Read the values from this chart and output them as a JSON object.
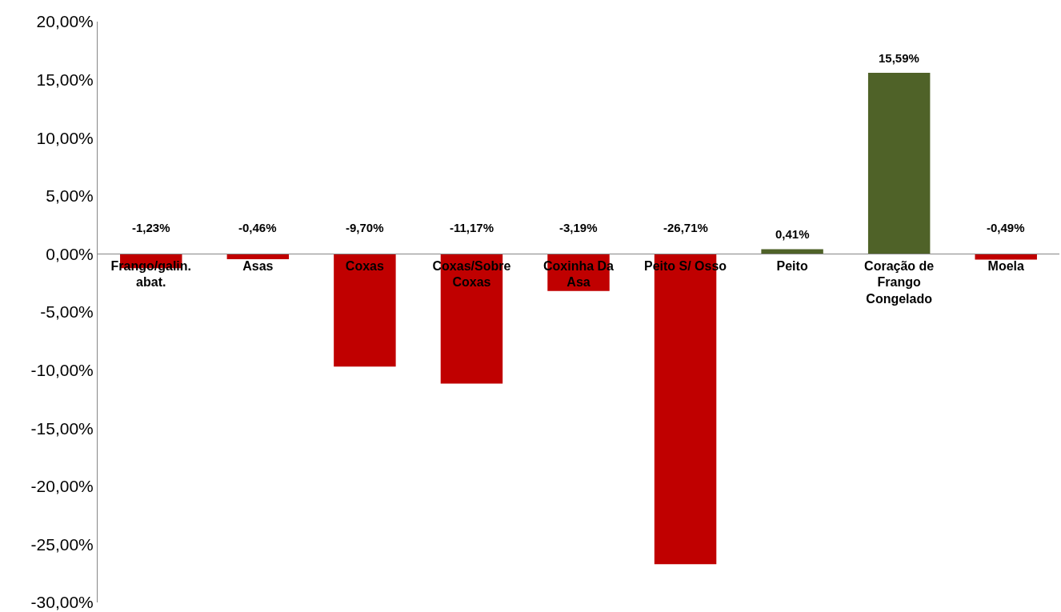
{
  "chart_data": {
    "type": "bar",
    "categories": [
      "Frango/galin. abat.",
      "Asas",
      "Coxas",
      "Coxas/Sobre Coxas",
      "Coxinha Da Asa",
      "Peito S/ Osso",
      "Peito",
      "Coração de Frango Congelado",
      "Moela"
    ],
    "values": [
      -1.23,
      -0.46,
      -9.7,
      -11.17,
      -3.19,
      -26.71,
      0.41,
      15.59,
      -0.49
    ],
    "colors": [
      "#c00000",
      "#c00000",
      "#c00000",
      "#c00000",
      "#c00000",
      "#c00000",
      "#4f6228",
      "#4f6228",
      "#c00000"
    ],
    "value_labels": [
      "-1,23%",
      "-0,46%",
      "-9,70%",
      "-11,17%",
      "-3,19%",
      "-26,71%",
      "0,41%",
      "15,59%",
      "-0,49%"
    ],
    "ylim": [
      -30,
      20
    ],
    "yticks": [
      {
        "value": 20,
        "label": "20,00%"
      },
      {
        "value": 15,
        "label": "15,00%"
      },
      {
        "value": 10,
        "label": "10,00%"
      },
      {
        "value": 5,
        "label": "5,00%"
      },
      {
        "value": 0,
        "label": "0,00%"
      },
      {
        "value": -5,
        "label": "-5,00%"
      },
      {
        "value": -10,
        "label": "-10,00%"
      },
      {
        "value": -15,
        "label": "-15,00%"
      },
      {
        "value": -20,
        "label": "-20,00%"
      },
      {
        "value": -25,
        "label": "-25,00%"
      },
      {
        "value": -30,
        "label": "-30,00%"
      }
    ],
    "legend": false
  }
}
